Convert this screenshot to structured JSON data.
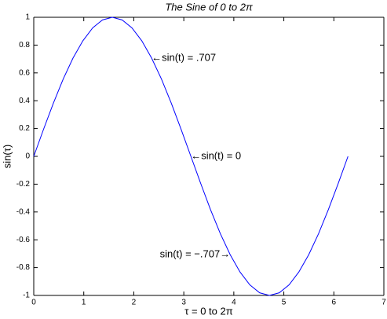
{
  "chart_data": {
    "type": "line",
    "title": "The Sine of 0 to 2π",
    "x_label": "τ = 0 to 2π",
    "y_label": "sin(τ)",
    "x": [
      0,
      0.196,
      0.393,
      0.589,
      0.785,
      0.982,
      1.178,
      1.374,
      1.571,
      1.767,
      1.963,
      2.16,
      2.356,
      2.553,
      2.749,
      2.945,
      3.142,
      3.338,
      3.534,
      3.731,
      3.927,
      4.123,
      4.32,
      4.516,
      4.712,
      4.909,
      5.105,
      5.301,
      5.498,
      5.694,
      5.89,
      6.087,
      6.283
    ],
    "values": [
      0,
      0.195,
      0.383,
      0.556,
      0.707,
      0.831,
      0.924,
      0.981,
      1,
      0.981,
      0.924,
      0.831,
      0.707,
      0.556,
      0.383,
      0.195,
      0,
      -0.195,
      -0.383,
      -0.556,
      -0.707,
      -0.831,
      -0.924,
      -0.981,
      -1,
      -0.981,
      -0.924,
      -0.831,
      -0.707,
      -0.556,
      -0.383,
      -0.195,
      0
    ],
    "color": "#0000ff",
    "xlim": [
      0,
      7
    ],
    "xticks": [
      0,
      1,
      2,
      3,
      4,
      5,
      6,
      7
    ],
    "ylim": [
      -1,
      1
    ],
    "yticks": [
      -1,
      -0.8,
      -0.6,
      -0.4,
      -0.2,
      0,
      0.2,
      0.4,
      0.6,
      0.8,
      1
    ],
    "grid": false,
    "annotations": [
      {
        "text": "←sin(t) = .707",
        "x": 2.356,
        "y": 0.707,
        "align": "left"
      },
      {
        "text": "←sin(t) = 0",
        "x": 3.142,
        "y": 0,
        "align": "left"
      },
      {
        "text": "sin(t) = −.707→",
        "x": 3.927,
        "y": -0.707,
        "align": "right"
      }
    ]
  }
}
